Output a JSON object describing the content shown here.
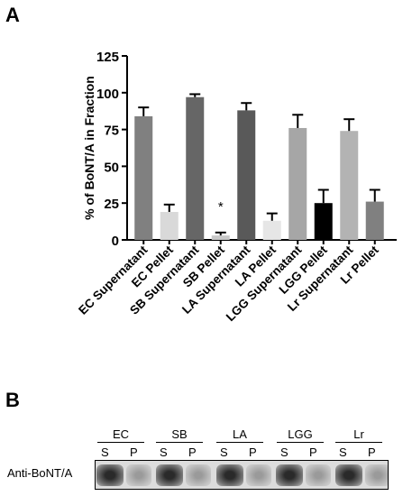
{
  "panel_a": {
    "letter": "A"
  },
  "panel_b": {
    "letter": "B",
    "row_label": "Anti-BoNT/A",
    "lanes": [
      {
        "group": "EC",
        "s": "S",
        "p": "P"
      },
      {
        "group": "SB",
        "s": "S",
        "p": "P"
      },
      {
        "group": "LA",
        "s": "S",
        "p": "P"
      },
      {
        "group": "LGG",
        "s": "S",
        "p": "P"
      },
      {
        "group": "Lr",
        "s": "S",
        "p": "P"
      }
    ]
  },
  "chart_data": {
    "type": "bar",
    "ylabel": "% of BoNT/A in Fraction",
    "xlabel": "",
    "ylim": [
      0,
      125
    ],
    "yticks": [
      0,
      25,
      50,
      75,
      100,
      125
    ],
    "grid": false,
    "categories": [
      "EC Supernatant",
      "EC Pellet",
      "SB Supernatant",
      "SB Pellet",
      "LA Supernatant",
      "LA Pellet",
      "LGG Supernatant",
      "LGG Pellet",
      "Lr Supernatant",
      "Lr Pellet"
    ],
    "values": [
      84,
      19,
      97,
      3,
      88,
      13,
      76,
      25,
      74,
      26
    ],
    "errors": [
      6,
      5,
      2,
      2,
      5,
      5,
      9,
      9,
      8,
      8
    ],
    "colors": [
      "#808080",
      "#d9d9d9",
      "#666666",
      "#c8c8c8",
      "#595959",
      "#e6e6e6",
      "#a6a6a6",
      "#000000",
      "#b3b3b3",
      "#808080"
    ],
    "annotations": [
      {
        "category": "SB Pellet",
        "text": "*"
      }
    ]
  }
}
